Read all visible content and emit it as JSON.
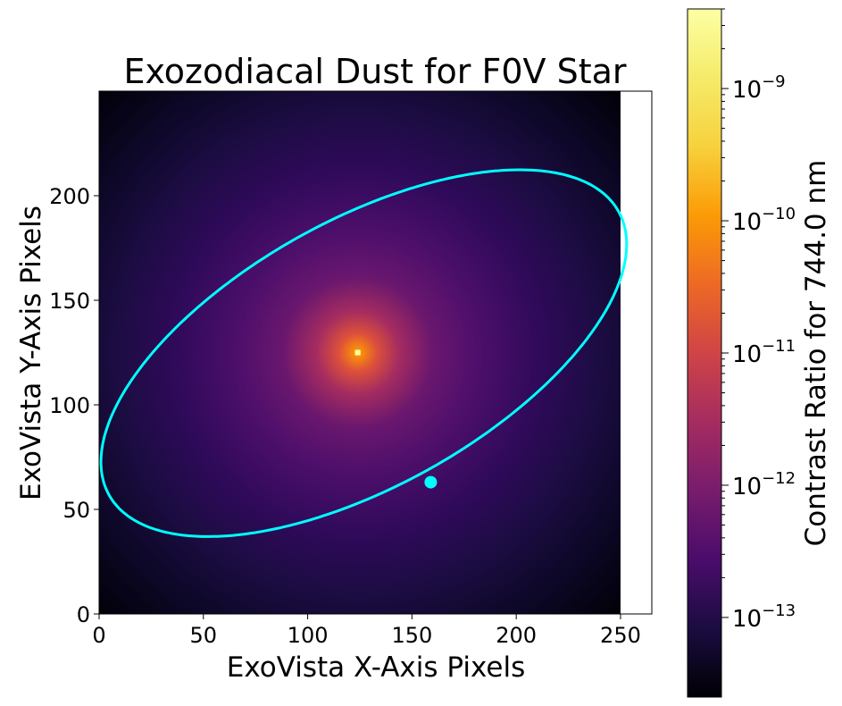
{
  "chart_data": {
    "type": "heatmap",
    "title": "Exozodiacal Dust for F0V Star",
    "xlabel": "ExoVista X-Axis Pixels",
    "ylabel": "ExoVista Y-Axis Pixels",
    "xlim": [
      0,
      265
    ],
    "ylim": [
      0,
      250
    ],
    "image_extent": [
      0,
      250,
      0,
      250
    ],
    "xticks": [
      0,
      50,
      100,
      150,
      200,
      250
    ],
    "yticks": [
      0,
      50,
      100,
      150,
      200
    ],
    "colormap": "inferno",
    "grid": false,
    "peak": {
      "x": 124,
      "y": 125
    },
    "series": [
      {
        "kind": "ellipse",
        "color": "#00ffff",
        "center": [
          126.9,
          124.7
        ],
        "semi_axes": [
          139.7,
          63.7
        ],
        "rotation_deg": 29
      },
      {
        "kind": "point",
        "color": "#00ffff",
        "x": 159,
        "y": 63
      }
    ],
    "colorbar": {
      "label": "Contrast Ratio for 744.0 nm",
      "scale": "log",
      "range": [
        2.5e-14,
        4e-09
      ],
      "ticks": [
        {
          "value": 1e-09,
          "base": "10",
          "exp": "−9"
        },
        {
          "value": 1e-10,
          "base": "10",
          "exp": "−10"
        },
        {
          "value": 1e-11,
          "base": "10",
          "exp": "−11"
        },
        {
          "value": 1e-12,
          "base": "10",
          "exp": "−12"
        },
        {
          "value": 1e-13,
          "base": "10",
          "exp": "−13"
        }
      ]
    }
  }
}
